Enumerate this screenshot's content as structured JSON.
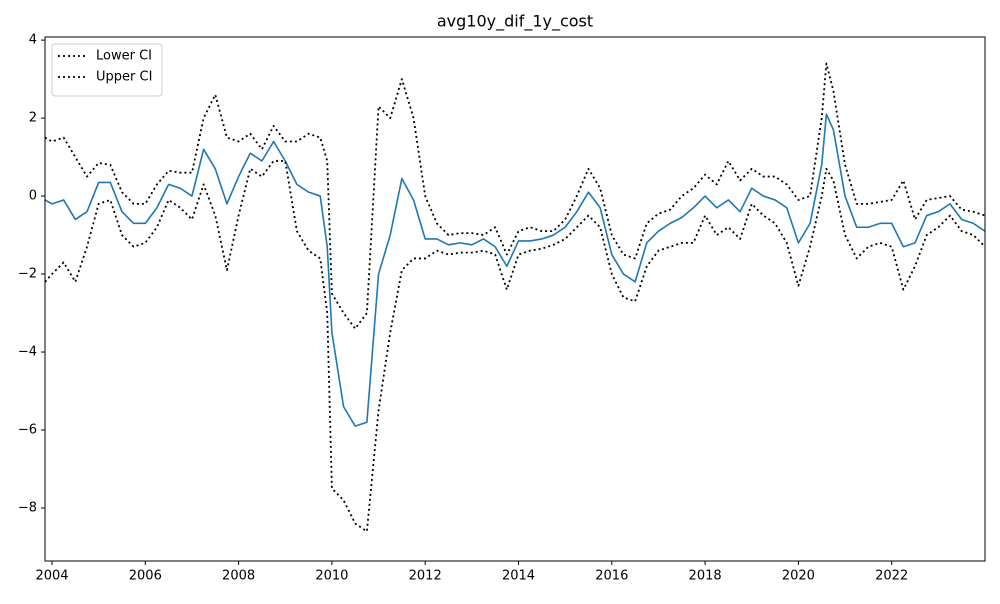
{
  "chart_data": {
    "type": "line",
    "title": "avg10y_dif_1y_cost",
    "x": [
      2003.85,
      2004.0,
      2004.25,
      2004.5,
      2004.75,
      2005.0,
      2005.25,
      2005.5,
      2005.75,
      2006.0,
      2006.25,
      2006.5,
      2006.75,
      2007.0,
      2007.25,
      2007.5,
      2007.75,
      2008.0,
      2008.25,
      2008.5,
      2008.75,
      2009.0,
      2009.25,
      2009.5,
      2009.75,
      2009.9,
      2010.0,
      2010.25,
      2010.5,
      2010.75,
      2011.0,
      2011.25,
      2011.5,
      2011.75,
      2012.0,
      2012.25,
      2012.5,
      2012.75,
      2013.0,
      2013.25,
      2013.5,
      2013.75,
      2014.0,
      2014.25,
      2014.5,
      2014.75,
      2015.0,
      2015.25,
      2015.5,
      2015.75,
      2016.0,
      2016.25,
      2016.5,
      2016.75,
      2017.0,
      2017.25,
      2017.5,
      2017.75,
      2018.0,
      2018.25,
      2018.5,
      2018.75,
      2019.0,
      2019.25,
      2019.5,
      2019.75,
      2020.0,
      2020.25,
      2020.5,
      2020.6,
      2020.75,
      2021.0,
      2021.25,
      2021.5,
      2021.75,
      2022.0,
      2022.25,
      2022.5,
      2022.75,
      2023.0,
      2023.25,
      2023.5,
      2023.75,
      2024.0
    ],
    "series": [
      {
        "color": "#1f77b4",
        "linestyle": "solid",
        "values": [
          -0.1,
          -0.2,
          -0.1,
          -0.6,
          -0.4,
          0.35,
          0.35,
          -0.4,
          -0.7,
          -0.7,
          -0.3,
          0.3,
          0.2,
          0.0,
          1.2,
          0.7,
          -0.2,
          0.5,
          1.1,
          0.9,
          1.4,
          0.9,
          0.3,
          0.1,
          0.0,
          -1.3,
          -3.5,
          -5.4,
          -5.9,
          -5.8,
          -2.0,
          -1.0,
          0.45,
          -0.1,
          -1.1,
          -1.1,
          -1.25,
          -1.2,
          -1.25,
          -1.1,
          -1.3,
          -1.8,
          -1.15,
          -1.15,
          -1.1,
          -1.0,
          -0.8,
          -0.4,
          0.1,
          -0.3,
          -1.5,
          -2.0,
          -2.2,
          -1.2,
          -0.9,
          -0.7,
          -0.55,
          -0.3,
          0.0,
          -0.3,
          -0.1,
          -0.4,
          0.2,
          0.0,
          -0.1,
          -0.3,
          -1.2,
          -0.7,
          0.8,
          2.1,
          1.7,
          0.0,
          -0.8,
          -0.8,
          -0.7,
          -0.7,
          -1.3,
          -1.2,
          -0.5,
          -0.4,
          -0.2,
          -0.6,
          -0.7,
          -0.9
        ]
      },
      {
        "name": "Lower CI",
        "color": "#000000",
        "linestyle": "dotted",
        "values": [
          -2.2,
          -2.0,
          -1.7,
          -2.2,
          -1.3,
          -0.2,
          -0.1,
          -1.0,
          -1.3,
          -1.2,
          -0.8,
          -0.1,
          -0.3,
          -0.6,
          0.3,
          -0.5,
          -1.9,
          -0.5,
          0.7,
          0.5,
          0.9,
          0.9,
          -0.9,
          -1.4,
          -1.6,
          -3.0,
          -7.5,
          -7.8,
          -8.4,
          -8.6,
          -5.5,
          -3.5,
          -1.9,
          -1.6,
          -1.6,
          -1.4,
          -1.5,
          -1.45,
          -1.45,
          -1.4,
          -1.5,
          -2.4,
          -1.5,
          -1.4,
          -1.35,
          -1.25,
          -1.1,
          -0.8,
          -0.5,
          -0.8,
          -2.0,
          -2.6,
          -2.7,
          -1.8,
          -1.4,
          -1.3,
          -1.2,
          -1.2,
          -0.5,
          -1.0,
          -0.8,
          -1.1,
          -0.2,
          -0.5,
          -0.7,
          -1.2,
          -2.3,
          -1.3,
          0.0,
          0.7,
          0.4,
          -1.0,
          -1.6,
          -1.3,
          -1.2,
          -1.3,
          -2.4,
          -1.8,
          -1.0,
          -0.8,
          -0.5,
          -0.9,
          -1.0,
          -1.3
        ]
      },
      {
        "name": "Upper CI",
        "color": "#000000",
        "linestyle": "dotted",
        "values": [
          1.5,
          1.4,
          1.5,
          1.0,
          0.5,
          0.85,
          0.8,
          0.1,
          -0.2,
          -0.2,
          0.3,
          0.65,
          0.6,
          0.6,
          2.0,
          2.6,
          1.5,
          1.4,
          1.6,
          1.2,
          1.8,
          1.4,
          1.4,
          1.6,
          1.5,
          0.9,
          -2.5,
          -3.0,
          -3.4,
          -3.0,
          2.3,
          2.0,
          3.0,
          2.0,
          0.0,
          -0.7,
          -1.0,
          -0.95,
          -0.95,
          -1.0,
          -0.8,
          -1.5,
          -0.9,
          -0.8,
          -0.9,
          -0.9,
          -0.6,
          0.0,
          0.7,
          0.2,
          -1.0,
          -1.5,
          -1.6,
          -0.7,
          -0.45,
          -0.35,
          0.0,
          0.2,
          0.55,
          0.3,
          0.9,
          0.4,
          0.7,
          0.5,
          0.5,
          0.3,
          -0.1,
          0.0,
          2.0,
          3.4,
          2.7,
          0.8,
          -0.2,
          -0.2,
          -0.15,
          -0.1,
          0.4,
          -0.6,
          -0.1,
          -0.05,
          0.0,
          -0.35,
          -0.4,
          -0.5
        ]
      }
    ],
    "xlim": [
      2003.85,
      2024.0
    ],
    "ylim": [
      -9.36,
      4.08
    ],
    "xticks": [
      2004,
      2006,
      2008,
      2010,
      2012,
      2014,
      2016,
      2018,
      2020,
      2022
    ],
    "yticks": [
      {
        "value": -8,
        "label": "−8"
      },
      {
        "value": -6,
        "label": "−6"
      },
      {
        "value": -4,
        "label": "−4"
      },
      {
        "value": -2,
        "label": "−2"
      },
      0,
      2,
      4
    ],
    "grid": false,
    "legend": "upper left"
  }
}
